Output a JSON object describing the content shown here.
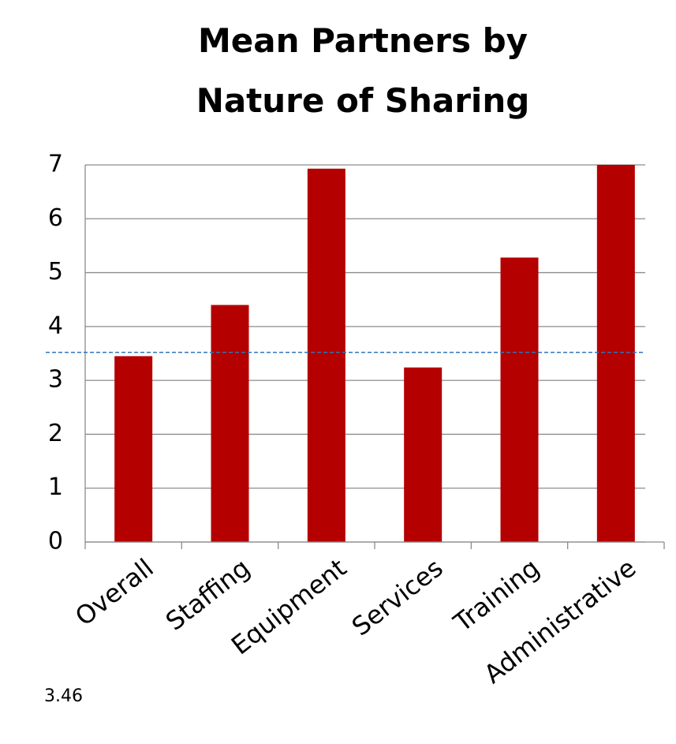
{
  "chart_data": {
    "type": "bar",
    "title": "Mean Partners by Nature of Sharing",
    "categories": [
      "Overall",
      "Staffing",
      "Equipment",
      "Services",
      "Training",
      "Administrative"
    ],
    "values": [
      3.45,
      4.4,
      6.93,
      3.24,
      5.28,
      7.0
    ],
    "color": "#b50000",
    "ylim": [
      0,
      7
    ],
    "yticks": [
      0,
      1,
      2,
      3,
      4,
      5,
      6,
      7
    ],
    "grid": true,
    "reference_line": {
      "value": 3.52,
      "color": "#2e75b6",
      "style": "dashed"
    },
    "annotation": "3.46"
  }
}
